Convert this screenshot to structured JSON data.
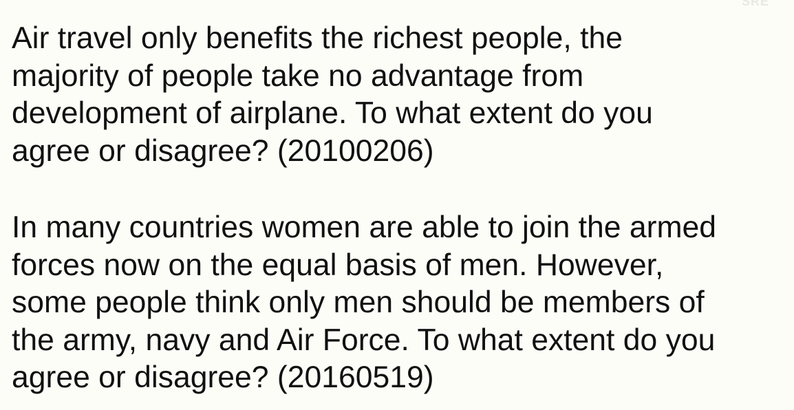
{
  "questions": [
    {
      "lines": [
        "Air travel only benefits the richest people, the",
        "majority of people take no advantage from",
        "development of airplane. To what extent do you",
        "agree or disagree? (20100206)"
      ]
    },
    {
      "lines": [
        "In many countries women are able to join the armed",
        "forces now on the equal basis of men. However,",
        "some people think only men should be members of",
        "the army, navy and Air Force. To what extent do you",
        "agree or disagree? (20160519)"
      ]
    }
  ]
}
